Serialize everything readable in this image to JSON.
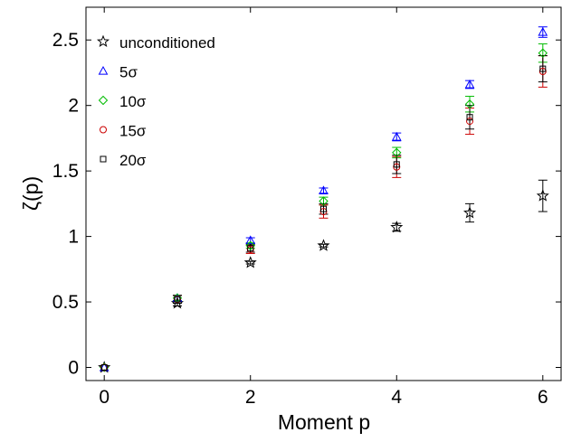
{
  "chart_data": {
    "type": "scatter",
    "title": "",
    "xlabel": "Moment p",
    "ylabel": "ζ(p)",
    "xlim": [
      -0.25,
      6.25
    ],
    "ylim": [
      -0.1,
      2.75
    ],
    "xticks": [
      0,
      2,
      4,
      6
    ],
    "xtick_labels": [
      "0",
      "2",
      "4",
      "6"
    ],
    "yticks": [
      0,
      0.5,
      1,
      1.5,
      2,
      2.5
    ],
    "ytick_labels": [
      "0",
      "0.5",
      "1",
      "1.5",
      "2",
      "2.5"
    ],
    "grid": false,
    "legend_position": "top-left",
    "series": [
      {
        "name": "unconditioned",
        "marker": "star",
        "color": "#000000",
        "x": [
          0,
          1,
          2,
          3,
          4,
          5,
          6
        ],
        "y": [
          0,
          0.49,
          0.8,
          0.93,
          1.07,
          1.18,
          1.31
        ],
        "err": [
          0,
          0.02,
          0.01,
          0.01,
          0.03,
          0.07,
          0.12
        ]
      },
      {
        "name": "5σ",
        "marker": "triangle",
        "color": "#0000ff",
        "x": [
          0,
          1,
          2,
          3,
          4,
          5,
          6
        ],
        "y": [
          0,
          0.53,
          0.97,
          1.35,
          1.76,
          2.16,
          2.56
        ],
        "err": [
          0,
          0.02,
          0.02,
          0.02,
          0.03,
          0.03,
          0.04
        ]
      },
      {
        "name": "10σ",
        "marker": "diamond",
        "color": "#00bb00",
        "x": [
          0,
          1,
          2,
          3,
          4,
          5,
          6
        ],
        "y": [
          0,
          0.53,
          0.93,
          1.27,
          1.64,
          2.01,
          2.4
        ],
        "err": [
          0,
          0.02,
          0.02,
          0.03,
          0.04,
          0.06,
          0.07
        ]
      },
      {
        "name": "15σ",
        "marker": "circle",
        "color": "#cc0000",
        "x": [
          0,
          1,
          2,
          3,
          4,
          5,
          6
        ],
        "y": [
          0,
          0.52,
          0.9,
          1.19,
          1.53,
          1.88,
          2.26
        ],
        "err": [
          0,
          0.03,
          0.03,
          0.05,
          0.08,
          0.1,
          0.12
        ]
      },
      {
        "name": "20σ",
        "marker": "square",
        "color": "#000000",
        "x": [
          0,
          1,
          2,
          3,
          4,
          5,
          6
        ],
        "y": [
          0,
          0.52,
          0.91,
          1.21,
          1.55,
          1.91,
          2.28
        ],
        "err": [
          0,
          0.03,
          0.03,
          0.04,
          0.07,
          0.09,
          0.1
        ]
      }
    ]
  }
}
